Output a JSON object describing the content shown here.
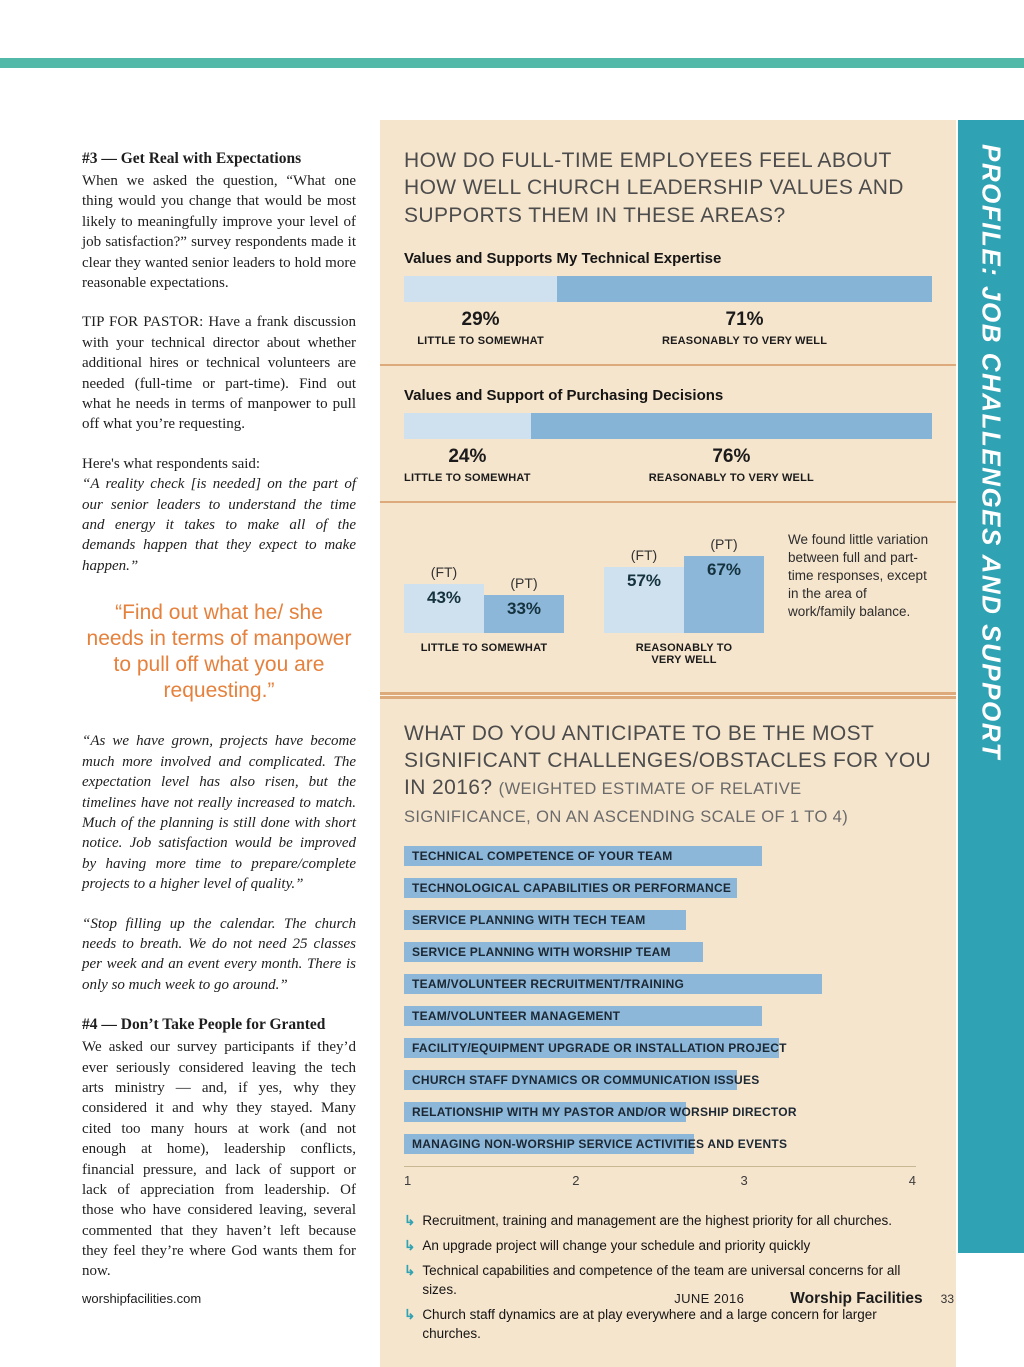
{
  "colors": {
    "teal": "#52b9a8",
    "sidebar_teal": "#2fa2b3",
    "beige": "#f6e5cd",
    "light_blue": "#cfe1ee",
    "mid_blue": "#85b4d6",
    "mid_blue2": "#8cb7d8",
    "tan": "#dcaa7b",
    "orange": "#e5813c"
  },
  "sidebar": {
    "label": "PROFILE: JOB CHALLENGES AND SUPPORT"
  },
  "article": {
    "heading3": "#3 — Get Real with Expectations",
    "para1": "When we asked the question, “What one thing would you change that would be most likely to meaningfully improve your level of job satisfaction?” survey respondents made it clear they wanted senior leaders to hold more reasonable expectations.",
    "tip_label": "TIP FOR PASTOR:",
    "tip_body": " Have a frank discussion with your technical director about whether additional hires or technical volunteers are needed (full-time or part-time). Find out what he needs in terms of manpower to pull off what you’re requesting.",
    "respondents_intro": "Here's what respondents said:",
    "quote1": "“A reality check [is needed] on the part of our senior leaders to understand the time and energy it takes to make all of the demands happen that they expect to make happen.”",
    "pull_quote": "“Find out what he/ she needs in terms of manpower to pull off what you are requesting.”",
    "quote2": "“As we have grown, projects have become much more involved and complicated. The expectation level has also risen, but the timelines have not really increased to match. Much of the planning is still done with short notice. Job satisfaction would be improved by having more time to prepare/complete projects to a higher level of quality.”",
    "quote3": "“Stop filling up the calendar. The church needs to breath. We do not need 25 classes per week and an event every month. There is only so much week to go around.”",
    "heading4": "#4 — Don’t Take People for Granted",
    "para4": "We asked our survey participants if they’d ever seriously considered leaving the tech arts ministry — and, if yes, why they considered it and why they stayed. Many cited too many hours at work (and not enough at home), leadership conflicts, financial pressure, and lack of support or lack of appreciation from leadership. Of those who have considered leaving, several commented that they haven’t left because they feel they’re where God wants them for now."
  },
  "support_panel": {
    "title": "HOW DO FULL-TIME EMPLOYEES FEEL ABOUT HOW WELL CHURCH LEADERSHIP VALUES AND SUPPORTS THEM IN THESE AREAS?"
  },
  "footer": {
    "site": "worshipfacilities.com",
    "issue": "JUNE 2016",
    "brand": "Worship Facilities",
    "page_number": "33"
  },
  "chart_data": [
    {
      "type": "bar",
      "subtype": "stacked_percent_row",
      "title": "Values and Supports My Technical Expertise",
      "segments": [
        {
          "label": "LITTLE TO SOMEWHAT",
          "value": 29,
          "value_label": "29%"
        },
        {
          "label": "REASONABLY TO VERY WELL",
          "value": 71,
          "value_label": "71%"
        }
      ]
    },
    {
      "type": "bar",
      "subtype": "stacked_percent_row",
      "title": "Values and Support of Purchasing Decisions",
      "segments": [
        {
          "label": "LITTLE TO SOMEWHAT",
          "value": 24,
          "value_label": "24%"
        },
        {
          "label": "REASONABLY TO VERY WELL",
          "value": 76,
          "value_label": "76%"
        }
      ]
    },
    {
      "type": "bar",
      "subtype": "grouped_columns_full_vs_part_time",
      "groups": [
        {
          "category": "LITTLE TO SOMEWHAT",
          "bars": [
            {
              "series": "(FT)",
              "value": 43,
              "value_label": "43%"
            },
            {
              "series": "(PT)",
              "value": 33,
              "value_label": "33%"
            }
          ]
        },
        {
          "category": "REASONABLY TO VERY WELL",
          "bars": [
            {
              "series": "(FT)",
              "value": 57,
              "value_label": "57%"
            },
            {
              "series": "(PT)",
              "value": 67,
              "value_label": "67%"
            }
          ]
        }
      ],
      "note": "We found little variation between full and part-time responses, except in the area of work/family balance."
    },
    {
      "type": "bar",
      "subtype": "horizontal_weighted",
      "title": "WHAT DO YOU ANTICIPATE TO BE THE MOST SIGNIFICANT CHALLENGES/OBSTACLES FOR YOU IN 2016? ",
      "subtitle": "(WEIGHTED ESTIMATE OF RELATIVE SIGNIFICANCE, ON AN ASCENDING SCALE OF 1 TO 4)",
      "xlim": [
        1,
        4
      ],
      "x_ticks": [
        "1",
        "2",
        "3",
        "4"
      ],
      "bars": [
        {
          "label": "TECHNICAL COMPETENCE OF YOUR TEAM",
          "value": 3.1
        },
        {
          "label": "TECHNOLOGICAL CAPABILITIES OR PERFORMANCE",
          "value": 2.95
        },
        {
          "label": "SERVICE PLANNING WITH TECH TEAM",
          "value": 2.65
        },
        {
          "label": "SERVICE PLANNING WITH WORSHIP TEAM",
          "value": 2.75
        },
        {
          "label": "TEAM/VOLUNTEER RECRUITMENT/TRAINING",
          "value": 3.45
        },
        {
          "label": "TEAM/VOLUNTEER MANAGEMENT",
          "value": 3.1
        },
        {
          "label": "FACILITY/EQUIPMENT UPGRADE OR INSTALLATION PROJECT",
          "value": 3.2
        },
        {
          "label": "CHURCH STAFF DYNAMICS OR COMMUNICATION ISSUES",
          "value": 2.95
        },
        {
          "label": "RELATIONSHIP WITH MY PASTOR AND/OR WORSHIP DIRECTOR",
          "value": 2.65
        },
        {
          "label": "MANAGING NON-WORSHIP SERVICE ACTIVITIES AND EVENTS",
          "value": 2.7
        }
      ],
      "takeaways": [
        "Recruitment, training and management are the highest priority for all churches.",
        "An upgrade project will change your schedule and priority quickly",
        "Technical capabilities and competence of the team are universal concerns for all sizes.",
        "Church staff dynamics are at play everywhere and a large concern for larger churches."
      ]
    }
  ]
}
